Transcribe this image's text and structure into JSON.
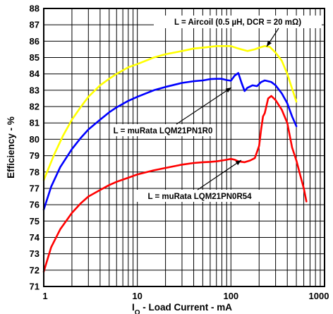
{
  "chart_data": {
    "type": "line",
    "xlabel": "Iₒ - Load Current - mA",
    "xlabel_main": "I",
    "xlabel_sub": "O",
    "xlabel_rest": " - Load Current - mA",
    "ylabel": "Efficiency - %",
    "x_scale": "log",
    "xlim": [
      1,
      1000
    ],
    "ylim": [
      71,
      88
    ],
    "x_ticks": [
      "1",
      "10",
      "100",
      "1000"
    ],
    "y_ticks": [
      "71",
      "72",
      "73",
      "74",
      "75",
      "76",
      "77",
      "78",
      "79",
      "80",
      "81",
      "82",
      "83",
      "84",
      "85",
      "86",
      "87",
      "88"
    ],
    "grid": true,
    "series": [
      {
        "name": "L = Aircoil (0.5 µH, DCR = 20 mΩ)",
        "color": "#ffff00",
        "x": [
          1,
          1.3,
          1.6,
          2,
          2.5,
          3,
          4,
          5,
          6,
          8,
          10,
          15,
          20,
          30,
          40,
          50,
          70,
          100,
          120,
          150,
          180,
          200,
          230,
          260,
          300,
          350,
          400,
          450,
          500
        ],
        "y": [
          77.5,
          79.1,
          80.2,
          81.2,
          82.0,
          82.6,
          83.3,
          83.7,
          84.0,
          84.4,
          84.6,
          85.0,
          85.2,
          85.4,
          85.55,
          85.6,
          85.7,
          85.7,
          85.55,
          85.4,
          85.5,
          85.6,
          85.7,
          85.65,
          85.3,
          84.8,
          84.0,
          83.1,
          82.3
        ]
      },
      {
        "name": "L = muRata LQM21PN1R0",
        "color": "#0000ff",
        "x": [
          1,
          1.2,
          1.5,
          2,
          2.5,
          3,
          4,
          5,
          6,
          8,
          10,
          15,
          20,
          30,
          40,
          50,
          60,
          70,
          80,
          90,
          100,
          110,
          120,
          130,
          140,
          150,
          170,
          190,
          210,
          230,
          250,
          270,
          300,
          350,
          400,
          450,
          500
        ],
        "y": [
          75.7,
          77.1,
          78.3,
          79.4,
          80.1,
          80.6,
          81.2,
          81.65,
          81.95,
          82.35,
          82.6,
          83.0,
          83.2,
          83.45,
          83.55,
          83.6,
          83.68,
          83.7,
          83.7,
          83.62,
          83.58,
          83.9,
          84.05,
          83.45,
          82.95,
          83.15,
          83.3,
          83.25,
          83.5,
          83.6,
          83.55,
          83.5,
          83.3,
          82.8,
          82.2,
          81.4,
          80.8
        ]
      },
      {
        "name": "L = muRata LQM21PN0R54",
        "color": "#ff0000",
        "x": [
          1,
          1.2,
          1.5,
          2,
          2.5,
          3,
          4,
          5,
          6,
          8,
          10,
          15,
          20,
          30,
          40,
          50,
          60,
          70,
          80,
          90,
          100,
          110,
          120,
          140,
          160,
          180,
          200,
          210,
          220,
          230,
          250,
          270,
          300,
          350,
          400,
          450,
          500,
          550,
          600,
          640
        ],
        "y": [
          71.9,
          73.4,
          74.5,
          75.5,
          76.1,
          76.5,
          76.9,
          77.2,
          77.4,
          77.65,
          77.85,
          78.1,
          78.25,
          78.45,
          78.55,
          78.6,
          78.62,
          78.65,
          78.7,
          78.75,
          78.8,
          78.75,
          78.65,
          78.6,
          78.7,
          78.85,
          79.6,
          80.6,
          81.4,
          81.6,
          82.5,
          82.65,
          82.4,
          81.8,
          81.0,
          79.5,
          78.7,
          77.8,
          77.0,
          76.2
        ]
      }
    ],
    "annotations": [
      {
        "text": "L = Aircoil (0.5 µH, DCR = 20 mΩ)",
        "series": 0
      },
      {
        "text": "L = muRata LQM21PN1R0",
        "series": 1
      },
      {
        "text": "L = muRata LQM21PN0R54",
        "series": 2
      }
    ]
  }
}
